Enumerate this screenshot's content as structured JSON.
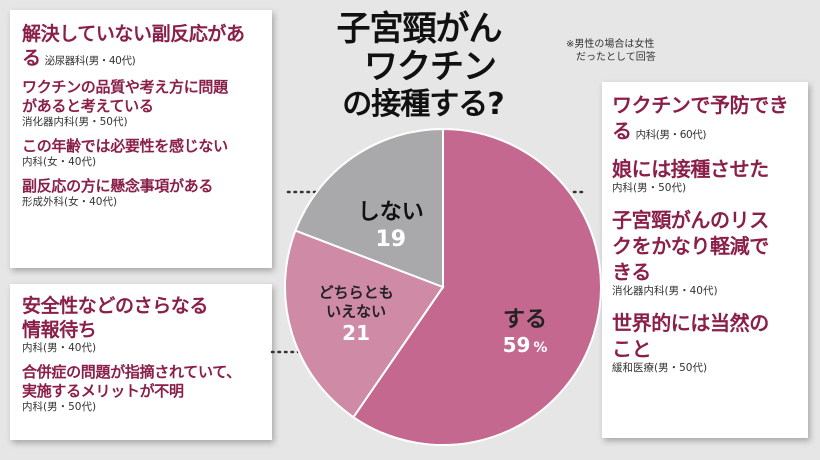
{
  "title": {
    "line1": "子宮頸がん",
    "line2": "ワクチン",
    "line3": "の接種する?"
  },
  "note": {
    "line1": "※男性の場合は女性",
    "line2": "だったとして回答"
  },
  "chart_data": {
    "type": "pie",
    "title": "子宮頸がんワクチンの接種する?",
    "labels": [
      "する",
      "どちらともいえない",
      "しない"
    ],
    "display_labels": [
      [
        "する"
      ],
      [
        "どちらとも",
        "いえない"
      ],
      [
        "しない"
      ]
    ],
    "values": [
      59,
      21,
      19
    ],
    "value_labels": [
      "59",
      "21",
      "19"
    ],
    "unit": "%",
    "colors": [
      "#c4688f",
      "#cf8aa6",
      "#a9a9ab"
    ],
    "start_angle_deg": 0,
    "direction": "clockwise"
  },
  "panels": {
    "left_top": [
      {
        "text": "解決していない副反応がある",
        "attr": "泌尿器科(男・40代)"
      },
      {
        "text": "ワクチンの品質や考え方に問題があると考えている",
        "attr": "消化器内科(男・50代)"
      },
      {
        "text": "この年齢では必要性を感じない",
        "attr": "内科(女・40代)"
      },
      {
        "text": "副反応の方に懸念事項がある",
        "attr": "形成外科(女・40代)"
      }
    ],
    "left_bottom": [
      {
        "text": "安全性などのさらなる情報待ち",
        "attr": "内科(男・40代)"
      },
      {
        "text": "合併症の問題が指摘されていて、実施するメリットが不明",
        "attr": "内科(男・50代)"
      }
    ],
    "right": [
      {
        "text": "ワクチンで予防できる",
        "attr": "内科(男・60代)"
      },
      {
        "text": "娘には接種させた",
        "attr": "内科(男・50代)"
      },
      {
        "text": "子宮頸がんのリスクをかなり軽減できる",
        "attr": "消化器内科(男・40代)"
      },
      {
        "text": "世界的には当然のこと",
        "attr": "緩和医療(男・50代)"
      }
    ]
  }
}
